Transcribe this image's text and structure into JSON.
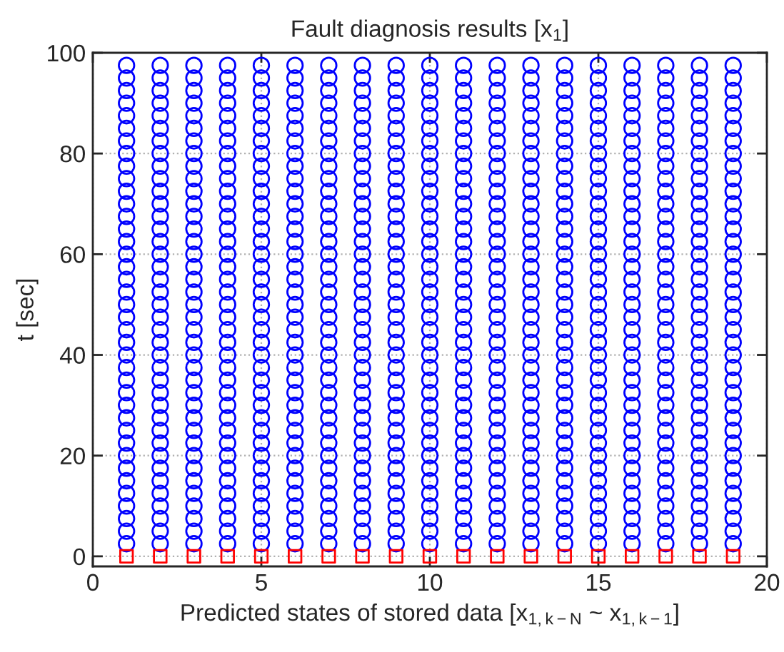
{
  "chart_data": {
    "type": "scatter",
    "title": "Fault diagnosis results [x$_{1}$]",
    "xlabel": "Predicted states of stored data [x$_{1,k−N}$ ~ x$_{1,k−1}$]",
    "ylabel": "t [sec]",
    "xlim": [
      0,
      20
    ],
    "xticks": [
      0,
      5,
      10,
      15,
      20
    ],
    "ylim": [
      -2,
      100
    ],
    "yticks": [
      0,
      20,
      40,
      60,
      80,
      100
    ],
    "grid": true,
    "series": [
      {
        "color": "#0000ff",
        "marker": "circle",
        "x": [
          1,
          1,
          1,
          1,
          1,
          1,
          1,
          1,
          1,
          1,
          1,
          1,
          1,
          1,
          1,
          1,
          1,
          1,
          1,
          1,
          1,
          1,
          1,
          1,
          1,
          1,
          1,
          1,
          1,
          1,
          1,
          1,
          1,
          1,
          1,
          1,
          1,
          1,
          1
        ],
        "values": [
          2.5,
          5,
          7.5,
          10,
          12.5,
          15,
          17.5,
          20,
          22.5,
          25,
          27.5,
          30,
          32.5,
          35,
          37.5,
          40,
          42.5,
          45,
          47.5,
          50,
          52.5,
          55,
          57.5,
          60,
          62.5,
          65,
          67.5,
          70,
          72.5,
          75,
          77.5,
          80,
          82.5,
          85,
          87.5,
          90,
          92.5,
          95,
          97.5
        ]
      },
      {
        "color": "#0000ff",
        "marker": "circle",
        "x": [
          2,
          2,
          2,
          2,
          2,
          2,
          2,
          2,
          2,
          2,
          2,
          2,
          2,
          2,
          2,
          2,
          2,
          2,
          2,
          2,
          2,
          2,
          2,
          2,
          2,
          2,
          2,
          2,
          2,
          2,
          2,
          2,
          2,
          2,
          2,
          2,
          2,
          2,
          2
        ],
        "values": [
          2.5,
          5,
          7.5,
          10,
          12.5,
          15,
          17.5,
          20,
          22.5,
          25,
          27.5,
          30,
          32.5,
          35,
          37.5,
          40,
          42.5,
          45,
          47.5,
          50,
          52.5,
          55,
          57.5,
          60,
          62.5,
          65,
          67.5,
          70,
          72.5,
          75,
          77.5,
          80,
          82.5,
          85,
          87.5,
          90,
          92.5,
          95,
          97.5
        ]
      },
      {
        "color": "#0000ff",
        "marker": "circle",
        "x": [
          3,
          3,
          3,
          3,
          3,
          3,
          3,
          3,
          3,
          3,
          3,
          3,
          3,
          3,
          3,
          3,
          3,
          3,
          3,
          3,
          3,
          3,
          3,
          3,
          3,
          3,
          3,
          3,
          3,
          3,
          3,
          3,
          3,
          3,
          3,
          3,
          3,
          3,
          3
        ],
        "values": [
          2.5,
          5,
          7.5,
          10,
          12.5,
          15,
          17.5,
          20,
          22.5,
          25,
          27.5,
          30,
          32.5,
          35,
          37.5,
          40,
          42.5,
          45,
          47.5,
          50,
          52.5,
          55,
          57.5,
          60,
          62.5,
          65,
          67.5,
          70,
          72.5,
          75,
          77.5,
          80,
          82.5,
          85,
          87.5,
          90,
          92.5,
          95,
          97.5
        ]
      },
      {
        "color": "#0000ff",
        "marker": "circle",
        "x": [
          4,
          4,
          4,
          4,
          4,
          4,
          4,
          4,
          4,
          4,
          4,
          4,
          4,
          4,
          4,
          4,
          4,
          4,
          4,
          4,
          4,
          4,
          4,
          4,
          4,
          4,
          4,
          4,
          4,
          4,
          4,
          4,
          4,
          4,
          4,
          4,
          4,
          4,
          4
        ],
        "values": [
          2.5,
          5,
          7.5,
          10,
          12.5,
          15,
          17.5,
          20,
          22.5,
          25,
          27.5,
          30,
          32.5,
          35,
          37.5,
          40,
          42.5,
          45,
          47.5,
          50,
          52.5,
          55,
          57.5,
          60,
          62.5,
          65,
          67.5,
          70,
          72.5,
          75,
          77.5,
          80,
          82.5,
          85,
          87.5,
          90,
          92.5,
          95,
          97.5
        ]
      },
      {
        "color": "#0000ff",
        "marker": "circle",
        "x": [
          5,
          5,
          5,
          5,
          5,
          5,
          5,
          5,
          5,
          5,
          5,
          5,
          5,
          5,
          5,
          5,
          5,
          5,
          5,
          5,
          5,
          5,
          5,
          5,
          5,
          5,
          5,
          5,
          5,
          5,
          5,
          5,
          5,
          5,
          5,
          5,
          5,
          5,
          5
        ],
        "values": [
          2.5,
          5,
          7.5,
          10,
          12.5,
          15,
          17.5,
          20,
          22.5,
          25,
          27.5,
          30,
          32.5,
          35,
          37.5,
          40,
          42.5,
          45,
          47.5,
          50,
          52.5,
          55,
          57.5,
          60,
          62.5,
          65,
          67.5,
          70,
          72.5,
          75,
          77.5,
          80,
          82.5,
          85,
          87.5,
          90,
          92.5,
          95,
          97.5
        ]
      },
      {
        "color": "#0000ff",
        "marker": "circle",
        "x": [
          6,
          6,
          6,
          6,
          6,
          6,
          6,
          6,
          6,
          6,
          6,
          6,
          6,
          6,
          6,
          6,
          6,
          6,
          6,
          6,
          6,
          6,
          6,
          6,
          6,
          6,
          6,
          6,
          6,
          6,
          6,
          6,
          6,
          6,
          6,
          6,
          6,
          6,
          6
        ],
        "values": [
          2.5,
          5,
          7.5,
          10,
          12.5,
          15,
          17.5,
          20,
          22.5,
          25,
          27.5,
          30,
          32.5,
          35,
          37.5,
          40,
          42.5,
          45,
          47.5,
          50,
          52.5,
          55,
          57.5,
          60,
          62.5,
          65,
          67.5,
          70,
          72.5,
          75,
          77.5,
          80,
          82.5,
          85,
          87.5,
          90,
          92.5,
          95,
          97.5
        ]
      },
      {
        "color": "#0000ff",
        "marker": "circle",
        "x": [
          7,
          7,
          7,
          7,
          7,
          7,
          7,
          7,
          7,
          7,
          7,
          7,
          7,
          7,
          7,
          7,
          7,
          7,
          7,
          7,
          7,
          7,
          7,
          7,
          7,
          7,
          7,
          7,
          7,
          7,
          7,
          7,
          7,
          7,
          7,
          7,
          7,
          7,
          7
        ],
        "values": [
          2.5,
          5,
          7.5,
          10,
          12.5,
          15,
          17.5,
          20,
          22.5,
          25,
          27.5,
          30,
          32.5,
          35,
          37.5,
          40,
          42.5,
          45,
          47.5,
          50,
          52.5,
          55,
          57.5,
          60,
          62.5,
          65,
          67.5,
          70,
          72.5,
          75,
          77.5,
          80,
          82.5,
          85,
          87.5,
          90,
          92.5,
          95,
          97.5
        ]
      },
      {
        "color": "#0000ff",
        "marker": "circle",
        "x": [
          8,
          8,
          8,
          8,
          8,
          8,
          8,
          8,
          8,
          8,
          8,
          8,
          8,
          8,
          8,
          8,
          8,
          8,
          8,
          8,
          8,
          8,
          8,
          8,
          8,
          8,
          8,
          8,
          8,
          8,
          8,
          8,
          8,
          8,
          8,
          8,
          8,
          8,
          8
        ],
        "values": [
          2.5,
          5,
          7.5,
          10,
          12.5,
          15,
          17.5,
          20,
          22.5,
          25,
          27.5,
          30,
          32.5,
          35,
          37.5,
          40,
          42.5,
          45,
          47.5,
          50,
          52.5,
          55,
          57.5,
          60,
          62.5,
          65,
          67.5,
          70,
          72.5,
          75,
          77.5,
          80,
          82.5,
          85,
          87.5,
          90,
          92.5,
          95,
          97.5
        ]
      },
      {
        "color": "#0000ff",
        "marker": "circle",
        "x": [
          9,
          9,
          9,
          9,
          9,
          9,
          9,
          9,
          9,
          9,
          9,
          9,
          9,
          9,
          9,
          9,
          9,
          9,
          9,
          9,
          9,
          9,
          9,
          9,
          9,
          9,
          9,
          9,
          9,
          9,
          9,
          9,
          9,
          9,
          9,
          9,
          9,
          9,
          9
        ],
        "values": [
          2.5,
          5,
          7.5,
          10,
          12.5,
          15,
          17.5,
          20,
          22.5,
          25,
          27.5,
          30,
          32.5,
          35,
          37.5,
          40,
          42.5,
          45,
          47.5,
          50,
          52.5,
          55,
          57.5,
          60,
          62.5,
          65,
          67.5,
          70,
          72.5,
          75,
          77.5,
          80,
          82.5,
          85,
          87.5,
          90,
          92.5,
          95,
          97.5
        ]
      },
      {
        "color": "#0000ff",
        "marker": "circle",
        "x": [
          10,
          10,
          10,
          10,
          10,
          10,
          10,
          10,
          10,
          10,
          10,
          10,
          10,
          10,
          10,
          10,
          10,
          10,
          10,
          10,
          10,
          10,
          10,
          10,
          10,
          10,
          10,
          10,
          10,
          10,
          10,
          10,
          10,
          10,
          10,
          10,
          10,
          10,
          10
        ],
        "values": [
          2.5,
          5,
          7.5,
          10,
          12.5,
          15,
          17.5,
          20,
          22.5,
          25,
          27.5,
          30,
          32.5,
          35,
          37.5,
          40,
          42.5,
          45,
          47.5,
          50,
          52.5,
          55,
          57.5,
          60,
          62.5,
          65,
          67.5,
          70,
          72.5,
          75,
          77.5,
          80,
          82.5,
          85,
          87.5,
          90,
          92.5,
          95,
          97.5
        ]
      },
      {
        "color": "#0000ff",
        "marker": "circle",
        "x": [
          11,
          11,
          11,
          11,
          11,
          11,
          11,
          11,
          11,
          11,
          11,
          11,
          11,
          11,
          11,
          11,
          11,
          11,
          11,
          11,
          11,
          11,
          11,
          11,
          11,
          11,
          11,
          11,
          11,
          11,
          11,
          11,
          11,
          11,
          11,
          11,
          11,
          11,
          11
        ],
        "values": [
          2.5,
          5,
          7.5,
          10,
          12.5,
          15,
          17.5,
          20,
          22.5,
          25,
          27.5,
          30,
          32.5,
          35,
          37.5,
          40,
          42.5,
          45,
          47.5,
          50,
          52.5,
          55,
          57.5,
          60,
          62.5,
          65,
          67.5,
          70,
          72.5,
          75,
          77.5,
          80,
          82.5,
          85,
          87.5,
          90,
          92.5,
          95,
          97.5
        ]
      },
      {
        "color": "#0000ff",
        "marker": "circle",
        "x": [
          12,
          12,
          12,
          12,
          12,
          12,
          12,
          12,
          12,
          12,
          12,
          12,
          12,
          12,
          12,
          12,
          12,
          12,
          12,
          12,
          12,
          12,
          12,
          12,
          12,
          12,
          12,
          12,
          12,
          12,
          12,
          12,
          12,
          12,
          12,
          12,
          12,
          12,
          12
        ],
        "values": [
          2.5,
          5,
          7.5,
          10,
          12.5,
          15,
          17.5,
          20,
          22.5,
          25,
          27.5,
          30,
          32.5,
          35,
          37.5,
          40,
          42.5,
          45,
          47.5,
          50,
          52.5,
          55,
          57.5,
          60,
          62.5,
          65,
          67.5,
          70,
          72.5,
          75,
          77.5,
          80,
          82.5,
          85,
          87.5,
          90,
          92.5,
          95,
          97.5
        ]
      },
      {
        "color": "#0000ff",
        "marker": "circle",
        "x": [
          13,
          13,
          13,
          13,
          13,
          13,
          13,
          13,
          13,
          13,
          13,
          13,
          13,
          13,
          13,
          13,
          13,
          13,
          13,
          13,
          13,
          13,
          13,
          13,
          13,
          13,
          13,
          13,
          13,
          13,
          13,
          13,
          13,
          13,
          13,
          13,
          13,
          13,
          13
        ],
        "values": [
          2.5,
          5,
          7.5,
          10,
          12.5,
          15,
          17.5,
          20,
          22.5,
          25,
          27.5,
          30,
          32.5,
          35,
          37.5,
          40,
          42.5,
          45,
          47.5,
          50,
          52.5,
          55,
          57.5,
          60,
          62.5,
          65,
          67.5,
          70,
          72.5,
          75,
          77.5,
          80,
          82.5,
          85,
          87.5,
          90,
          92.5,
          95,
          97.5
        ]
      },
      {
        "color": "#0000ff",
        "marker": "circle",
        "x": [
          14,
          14,
          14,
          14,
          14,
          14,
          14,
          14,
          14,
          14,
          14,
          14,
          14,
          14,
          14,
          14,
          14,
          14,
          14,
          14,
          14,
          14,
          14,
          14,
          14,
          14,
          14,
          14,
          14,
          14,
          14,
          14,
          14,
          14,
          14,
          14,
          14,
          14,
          14
        ],
        "values": [
          2.5,
          5,
          7.5,
          10,
          12.5,
          15,
          17.5,
          20,
          22.5,
          25,
          27.5,
          30,
          32.5,
          35,
          37.5,
          40,
          42.5,
          45,
          47.5,
          50,
          52.5,
          55,
          57.5,
          60,
          62.5,
          65,
          67.5,
          70,
          72.5,
          75,
          77.5,
          80,
          82.5,
          85,
          87.5,
          90,
          92.5,
          95,
          97.5
        ]
      },
      {
        "color": "#0000ff",
        "marker": "circle",
        "x": [
          15,
          15,
          15,
          15,
          15,
          15,
          15,
          15,
          15,
          15,
          15,
          15,
          15,
          15,
          15,
          15,
          15,
          15,
          15,
          15,
          15,
          15,
          15,
          15,
          15,
          15,
          15,
          15,
          15,
          15,
          15,
          15,
          15,
          15,
          15,
          15,
          15,
          15,
          15
        ],
        "values": [
          2.5,
          5,
          7.5,
          10,
          12.5,
          15,
          17.5,
          20,
          22.5,
          25,
          27.5,
          30,
          32.5,
          35,
          37.5,
          40,
          42.5,
          45,
          47.5,
          50,
          52.5,
          55,
          57.5,
          60,
          62.5,
          65,
          67.5,
          70,
          72.5,
          75,
          77.5,
          80,
          82.5,
          85,
          87.5,
          90,
          92.5,
          95,
          97.5
        ]
      },
      {
        "color": "#0000ff",
        "marker": "circle",
        "x": [
          16,
          16,
          16,
          16,
          16,
          16,
          16,
          16,
          16,
          16,
          16,
          16,
          16,
          16,
          16,
          16,
          16,
          16,
          16,
          16,
          16,
          16,
          16,
          16,
          16,
          16,
          16,
          16,
          16,
          16,
          16,
          16,
          16,
          16,
          16,
          16,
          16,
          16,
          16
        ],
        "values": [
          2.5,
          5,
          7.5,
          10,
          12.5,
          15,
          17.5,
          20,
          22.5,
          25,
          27.5,
          30,
          32.5,
          35,
          37.5,
          40,
          42.5,
          45,
          47.5,
          50,
          52.5,
          55,
          57.5,
          60,
          62.5,
          65,
          67.5,
          70,
          72.5,
          75,
          77.5,
          80,
          82.5,
          85,
          87.5,
          90,
          92.5,
          95,
          97.5
        ]
      },
      {
        "color": "#0000ff",
        "marker": "circle",
        "x": [
          17,
          17,
          17,
          17,
          17,
          17,
          17,
          17,
          17,
          17,
          17,
          17,
          17,
          17,
          17,
          17,
          17,
          17,
          17,
          17,
          17,
          17,
          17,
          17,
          17,
          17,
          17,
          17,
          17,
          17,
          17,
          17,
          17,
          17,
          17,
          17,
          17,
          17,
          17
        ],
        "values": [
          2.5,
          5,
          7.5,
          10,
          12.5,
          15,
          17.5,
          20,
          22.5,
          25,
          27.5,
          30,
          32.5,
          35,
          37.5,
          40,
          42.5,
          45,
          47.5,
          50,
          52.5,
          55,
          57.5,
          60,
          62.5,
          65,
          67.5,
          70,
          72.5,
          75,
          77.5,
          80,
          82.5,
          85,
          87.5,
          90,
          92.5,
          95,
          97.5
        ]
      },
      {
        "color": "#0000ff",
        "marker": "circle",
        "x": [
          18,
          18,
          18,
          18,
          18,
          18,
          18,
          18,
          18,
          18,
          18,
          18,
          18,
          18,
          18,
          18,
          18,
          18,
          18,
          18,
          18,
          18,
          18,
          18,
          18,
          18,
          18,
          18,
          18,
          18,
          18,
          18,
          18,
          18,
          18,
          18,
          18,
          18,
          18
        ],
        "values": [
          2.5,
          5,
          7.5,
          10,
          12.5,
          15,
          17.5,
          20,
          22.5,
          25,
          27.5,
          30,
          32.5,
          35,
          37.5,
          40,
          42.5,
          45,
          47.5,
          50,
          52.5,
          55,
          57.5,
          60,
          62.5,
          65,
          67.5,
          70,
          72.5,
          75,
          77.5,
          80,
          82.5,
          85,
          87.5,
          90,
          92.5,
          95,
          97.5
        ]
      },
      {
        "color": "#0000ff",
        "marker": "circle",
        "x": [
          19,
          19,
          19,
          19,
          19,
          19,
          19,
          19,
          19,
          19,
          19,
          19,
          19,
          19,
          19,
          19,
          19,
          19,
          19,
          19,
          19,
          19,
          19,
          19,
          19,
          19,
          19,
          19,
          19,
          19,
          19,
          19,
          19,
          19,
          19,
          19,
          19,
          19,
          19
        ],
        "values": [
          2.5,
          5,
          7.5,
          10,
          12.5,
          15,
          17.5,
          20,
          22.5,
          25,
          27.5,
          30,
          32.5,
          35,
          37.5,
          40,
          42.5,
          45,
          47.5,
          50,
          52.5,
          55,
          57.5,
          60,
          62.5,
          65,
          67.5,
          70,
          72.5,
          75,
          77.5,
          80,
          82.5,
          85,
          87.5,
          90,
          92.5,
          95,
          97.5
        ]
      },
      {
        "color": "#ff0000",
        "marker": "square",
        "x": [
          1,
          2,
          3,
          4,
          5,
          6,
          7,
          8,
          9,
          10,
          11,
          12,
          13,
          14,
          15,
          16,
          17,
          18,
          19
        ],
        "values": [
          0,
          0,
          0,
          0,
          0,
          0,
          0,
          0,
          0,
          0,
          0,
          0,
          0,
          0,
          0,
          0,
          0,
          0,
          0
        ]
      }
    ]
  }
}
